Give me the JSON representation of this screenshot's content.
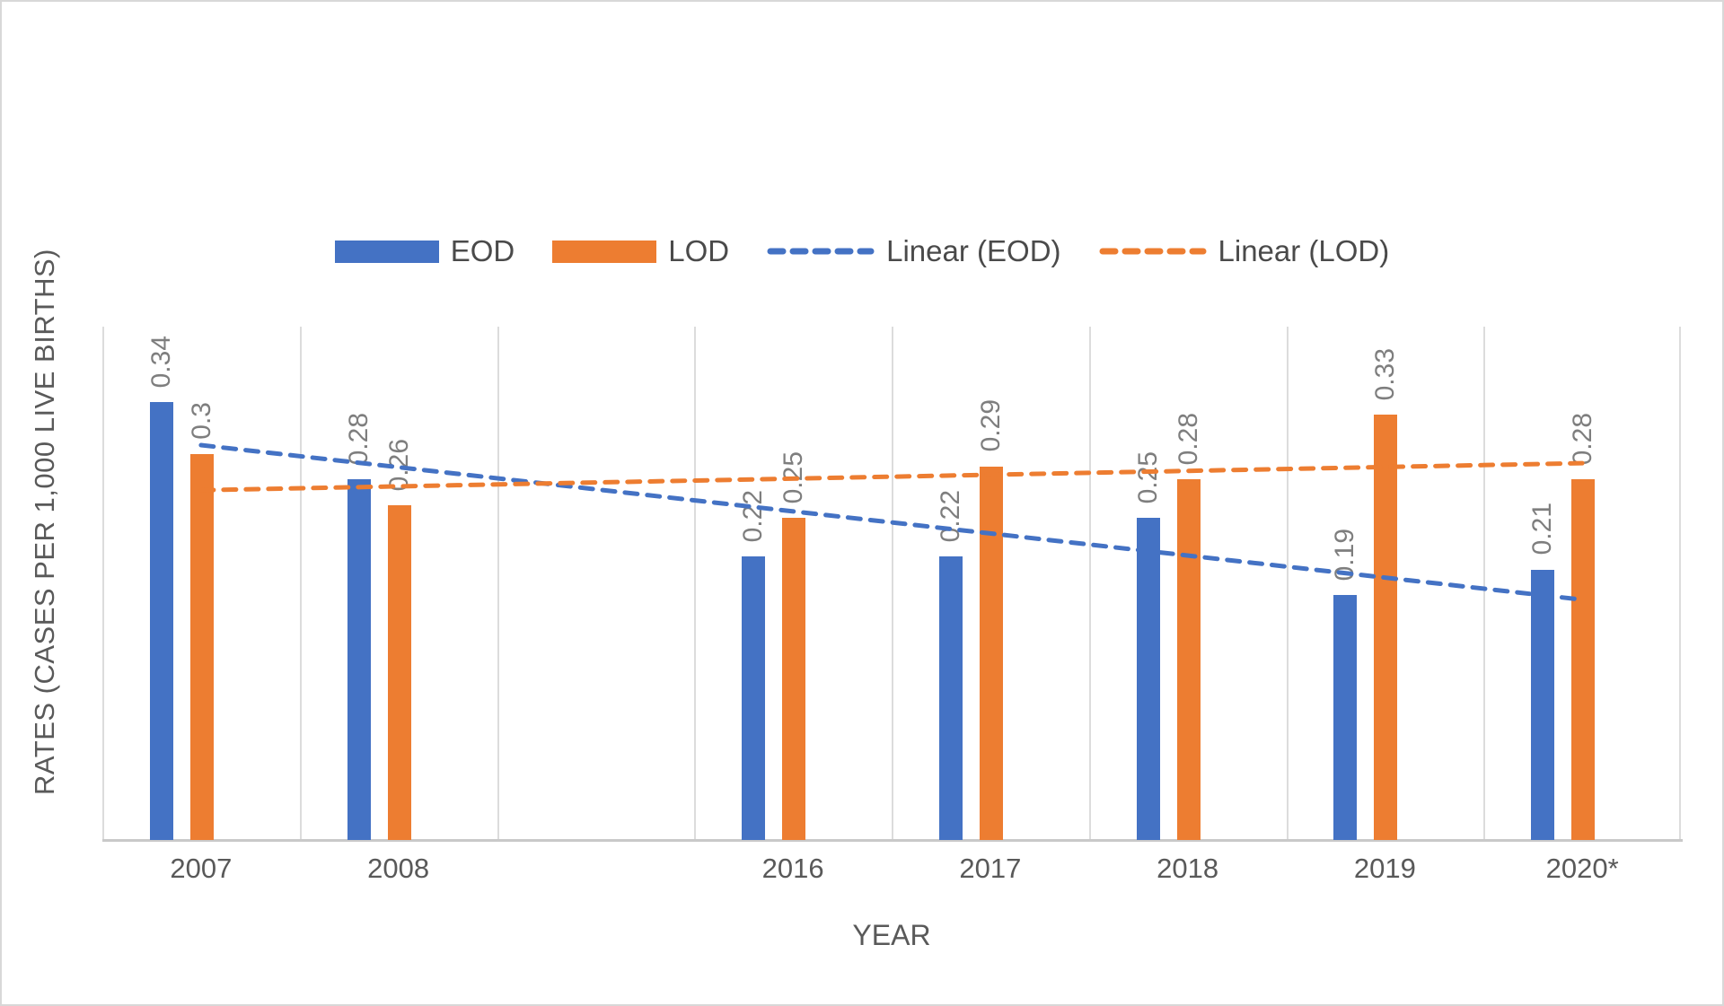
{
  "chart_data": {
    "type": "bar",
    "title": "",
    "categories": [
      "2007",
      "2008",
      "",
      "2016",
      "2017",
      "2018",
      "2019",
      "2020*"
    ],
    "series": [
      {
        "name": "EOD",
        "color": "#4472C4",
        "values": [
          0.34,
          0.28,
          null,
          0.22,
          0.22,
          0.25,
          0.19,
          0.21
        ],
        "labels": [
          "0.34",
          "0.28",
          "",
          "0.22",
          "0.22",
          "0.25",
          "0.19",
          "0.21"
        ]
      },
      {
        "name": "LOD",
        "color": "#ED7D31",
        "values": [
          0.3,
          0.26,
          null,
          0.25,
          0.29,
          0.28,
          0.33,
          0.28
        ],
        "labels": [
          "0.3",
          "0.26",
          "",
          "0.25",
          "0.29",
          "0.28",
          "0.33",
          "0.28"
        ]
      }
    ],
    "trendlines": [
      {
        "name": "Linear (EOD)",
        "color": "#4472C4",
        "start_value": 0.308,
        "end_value": 0.188
      },
      {
        "name": "Linear (LOD)",
        "color": "#ED7D31",
        "start_value": 0.273,
        "end_value": 0.294
      }
    ],
    "xlabel": "YEAR",
    "ylabel": "RATES (CASES PER 1,000 LIVE BIRTHS)",
    "ylim": [
      0,
      0.4
    ],
    "legend_position": "top",
    "gridlines": "vertical-only",
    "data_labels_rotated": true
  },
  "colors": {
    "eod_blue": "#4472C4",
    "lod_orange": "#ED7D31",
    "data_label_text": "#7E7E7E",
    "axis_text": "#595959",
    "legend_text": "#4A4A4A",
    "gridline": "#DCDCDC",
    "axis_line": "#C9C9C9",
    "frame_border": "#D8D8D8",
    "background": "#FFFFFF"
  }
}
